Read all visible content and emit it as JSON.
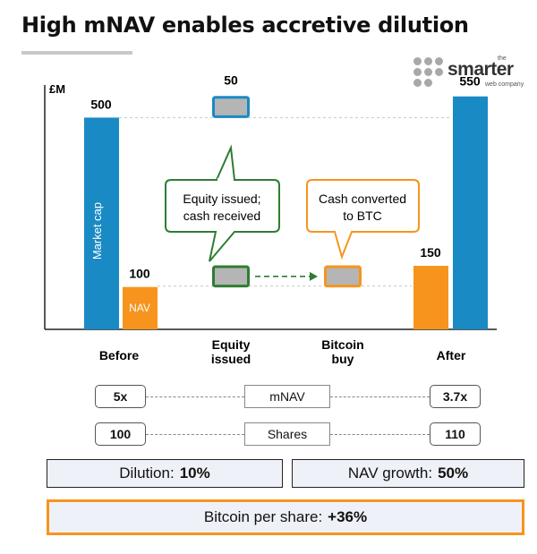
{
  "title": "High mNAV enables accretive dilution",
  "logo": {
    "small": "the",
    "name": "smarter",
    "sub": "web company"
  },
  "chart_data": {
    "type": "bar",
    "ylabel": "£M",
    "categories": [
      "Before",
      "Equity issued",
      "Bitcoin buy",
      "After"
    ],
    "series": [
      {
        "name": "Market cap",
        "values": [
          500,
          50,
          null,
          550
        ]
      },
      {
        "name": "NAV",
        "values": [
          100,
          50,
          50,
          150
        ]
      }
    ],
    "data_labels": {
      "before_mcap": "500",
      "before_nav": "100",
      "equity": "50",
      "after_mcap": "550",
      "after_nav": "150"
    },
    "ylim": [
      0,
      560
    ],
    "colors": {
      "market_cap": "#1a8ac4",
      "nav": "#f7941d",
      "equity_box": "#2e7d32",
      "cash_box": "#f7941d",
      "box_fill": "#b5b5b5"
    },
    "callouts": {
      "equity": [
        "Equity issued;",
        "cash received"
      ],
      "cash": [
        "Cash converted",
        "to BTC"
      ]
    },
    "x_labels": [
      [
        "Before"
      ],
      [
        "Equity",
        "issued"
      ],
      [
        "Bitcoin",
        "buy"
      ],
      [
        "After"
      ]
    ]
  },
  "metrics": {
    "mnav": {
      "label": "mNAV",
      "before": "5x",
      "after": "3.7x"
    },
    "shares": {
      "label": "Shares",
      "before": "100",
      "after": "110"
    }
  },
  "summary": {
    "dilution": {
      "label": "Dilution:",
      "value": "10%"
    },
    "nav_growth": {
      "label": "NAV growth:",
      "value": "50%"
    },
    "btc_per_share": {
      "label": "Bitcoin per share:",
      "value": "+36%"
    }
  }
}
